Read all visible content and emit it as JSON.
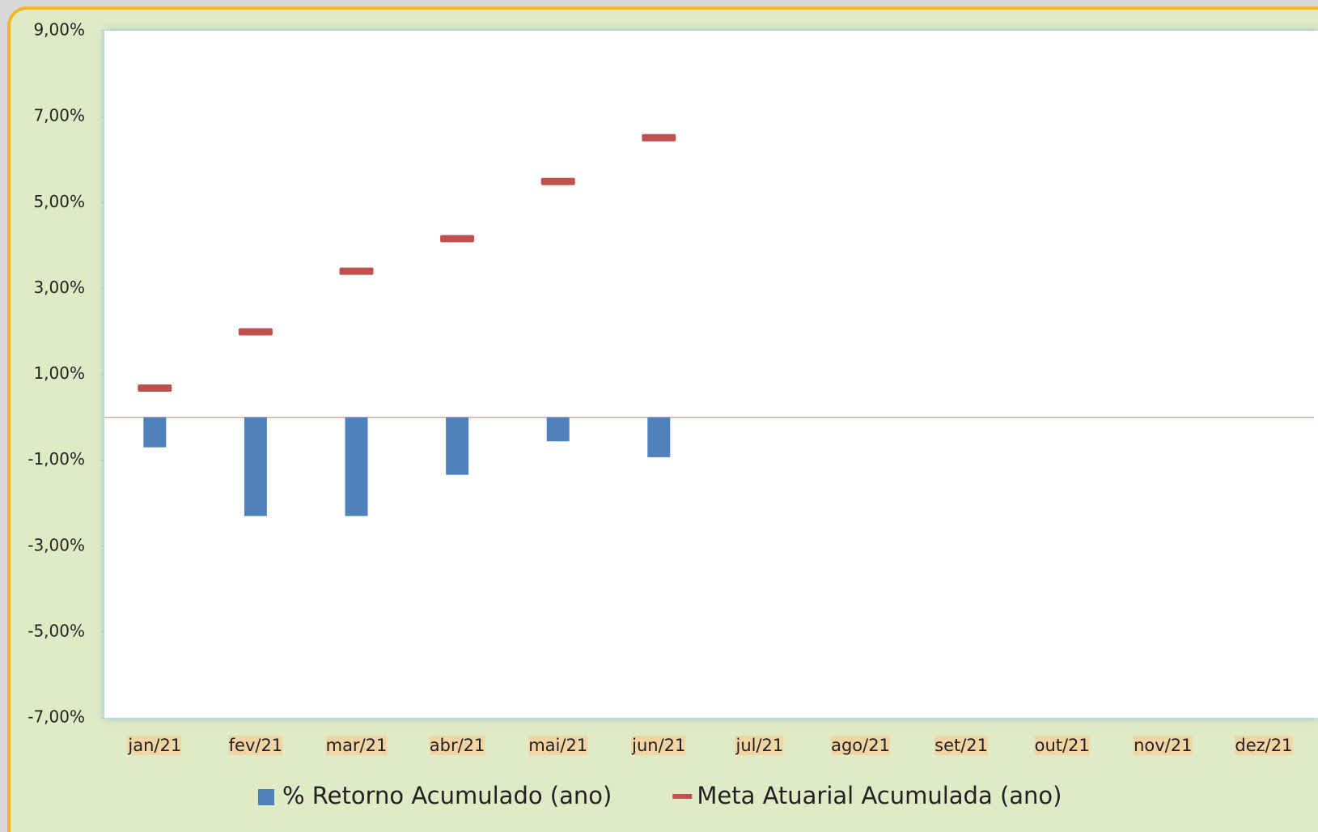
{
  "chart_data": {
    "type": "bar",
    "categories": [
      "jan/21",
      "fev/21",
      "mar/21",
      "abr/21",
      "mai/21",
      "jun/21",
      "jul/21",
      "ago/21",
      "set/21",
      "out/21",
      "nov/21",
      "dez/21"
    ],
    "series": [
      {
        "name": "% Retorno Acumulado (ano)",
        "color": "#4f81bd",
        "values": [
          -0.7,
          -2.3,
          -2.3,
          -1.34,
          -0.56,
          -0.93,
          null,
          null,
          null,
          null,
          null,
          null
        ]
      },
      {
        "name": "Meta Atuarial Acumulada (ano)",
        "color": "#c0504d",
        "marker": "dash",
        "values": [
          0.68,
          1.99,
          3.4,
          4.16,
          5.49,
          6.51,
          null,
          null,
          null,
          null,
          null,
          null
        ]
      }
    ],
    "ylim": [
      -7,
      9
    ],
    "yticks": [
      {
        "value": -7,
        "label": "-7,00%"
      },
      {
        "value": -5,
        "label": "-5,00%"
      },
      {
        "value": -3,
        "label": "-3,00%"
      },
      {
        "value": -1,
        "label": "-1,00%"
      },
      {
        "value": 1,
        "label": "1,00%"
      },
      {
        "value": 3,
        "label": "3,00%"
      },
      {
        "value": 5,
        "label": "5,00%"
      },
      {
        "value": 7,
        "label": "7,00%"
      },
      {
        "value": 9,
        "label": "9,00%"
      }
    ],
    "grid": false,
    "legend": "bottom"
  }
}
